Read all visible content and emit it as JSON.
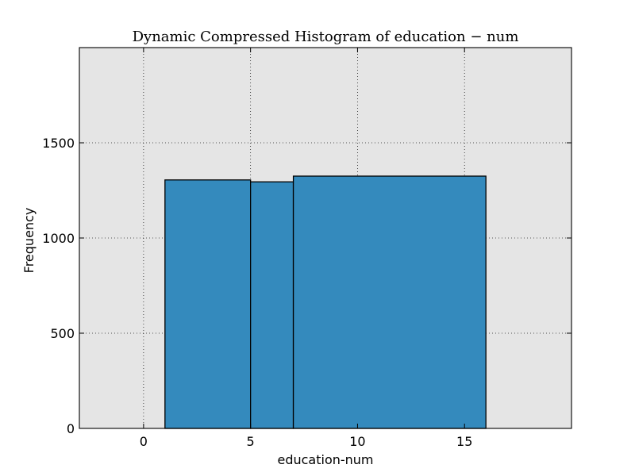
{
  "chart_data": {
    "type": "bar",
    "title": "Dynamic Compressed Histogram of education − num",
    "xlabel": "education-num",
    "ylabel": "Frequency",
    "xlim": [
      -3,
      20
    ],
    "ylim": [
      0,
      2000
    ],
    "xticks": [
      0,
      5,
      10,
      15
    ],
    "yticks": [
      0,
      500,
      1000,
      1500
    ],
    "grid": true,
    "bins": [
      {
        "x0": 1,
        "x1": 5,
        "value": 1305
      },
      {
        "x0": 5,
        "x1": 7,
        "value": 1295
      },
      {
        "x0": 7,
        "x1": 16,
        "value": 1325
      }
    ],
    "colors": {
      "bar": "#348abd",
      "plot_background": "#e5e5e5"
    }
  }
}
